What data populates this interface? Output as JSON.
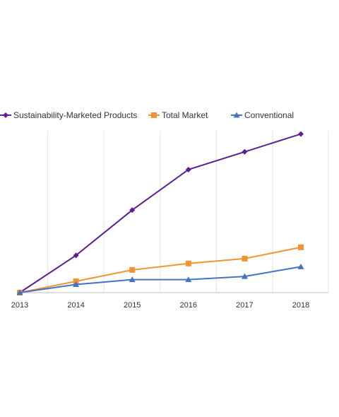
{
  "chart_data": {
    "type": "line",
    "title": "",
    "xlabel": "",
    "ylabel": "",
    "categories": [
      "2013",
      "2014",
      "2015",
      "2016",
      "2017",
      "2018"
    ],
    "y_axis_labels_shown": false,
    "ylim": [
      0,
      100
    ],
    "grid": "vertical",
    "legend_position": "top",
    "series": [
      {
        "name": "Sustainability-Marketed Products",
        "color": "#5b1f94",
        "marker": "diamond",
        "values": [
          0,
          23,
          51,
          76,
          87,
          98
        ]
      },
      {
        "name": "Total Market",
        "color": "#f39433",
        "marker": "square",
        "values": [
          0,
          7,
          14,
          18,
          21,
          28
        ]
      },
      {
        "name": "Conventional",
        "color": "#4472c4",
        "marker": "triangle",
        "values": [
          0,
          5,
          8,
          8,
          10,
          16
        ]
      }
    ]
  }
}
